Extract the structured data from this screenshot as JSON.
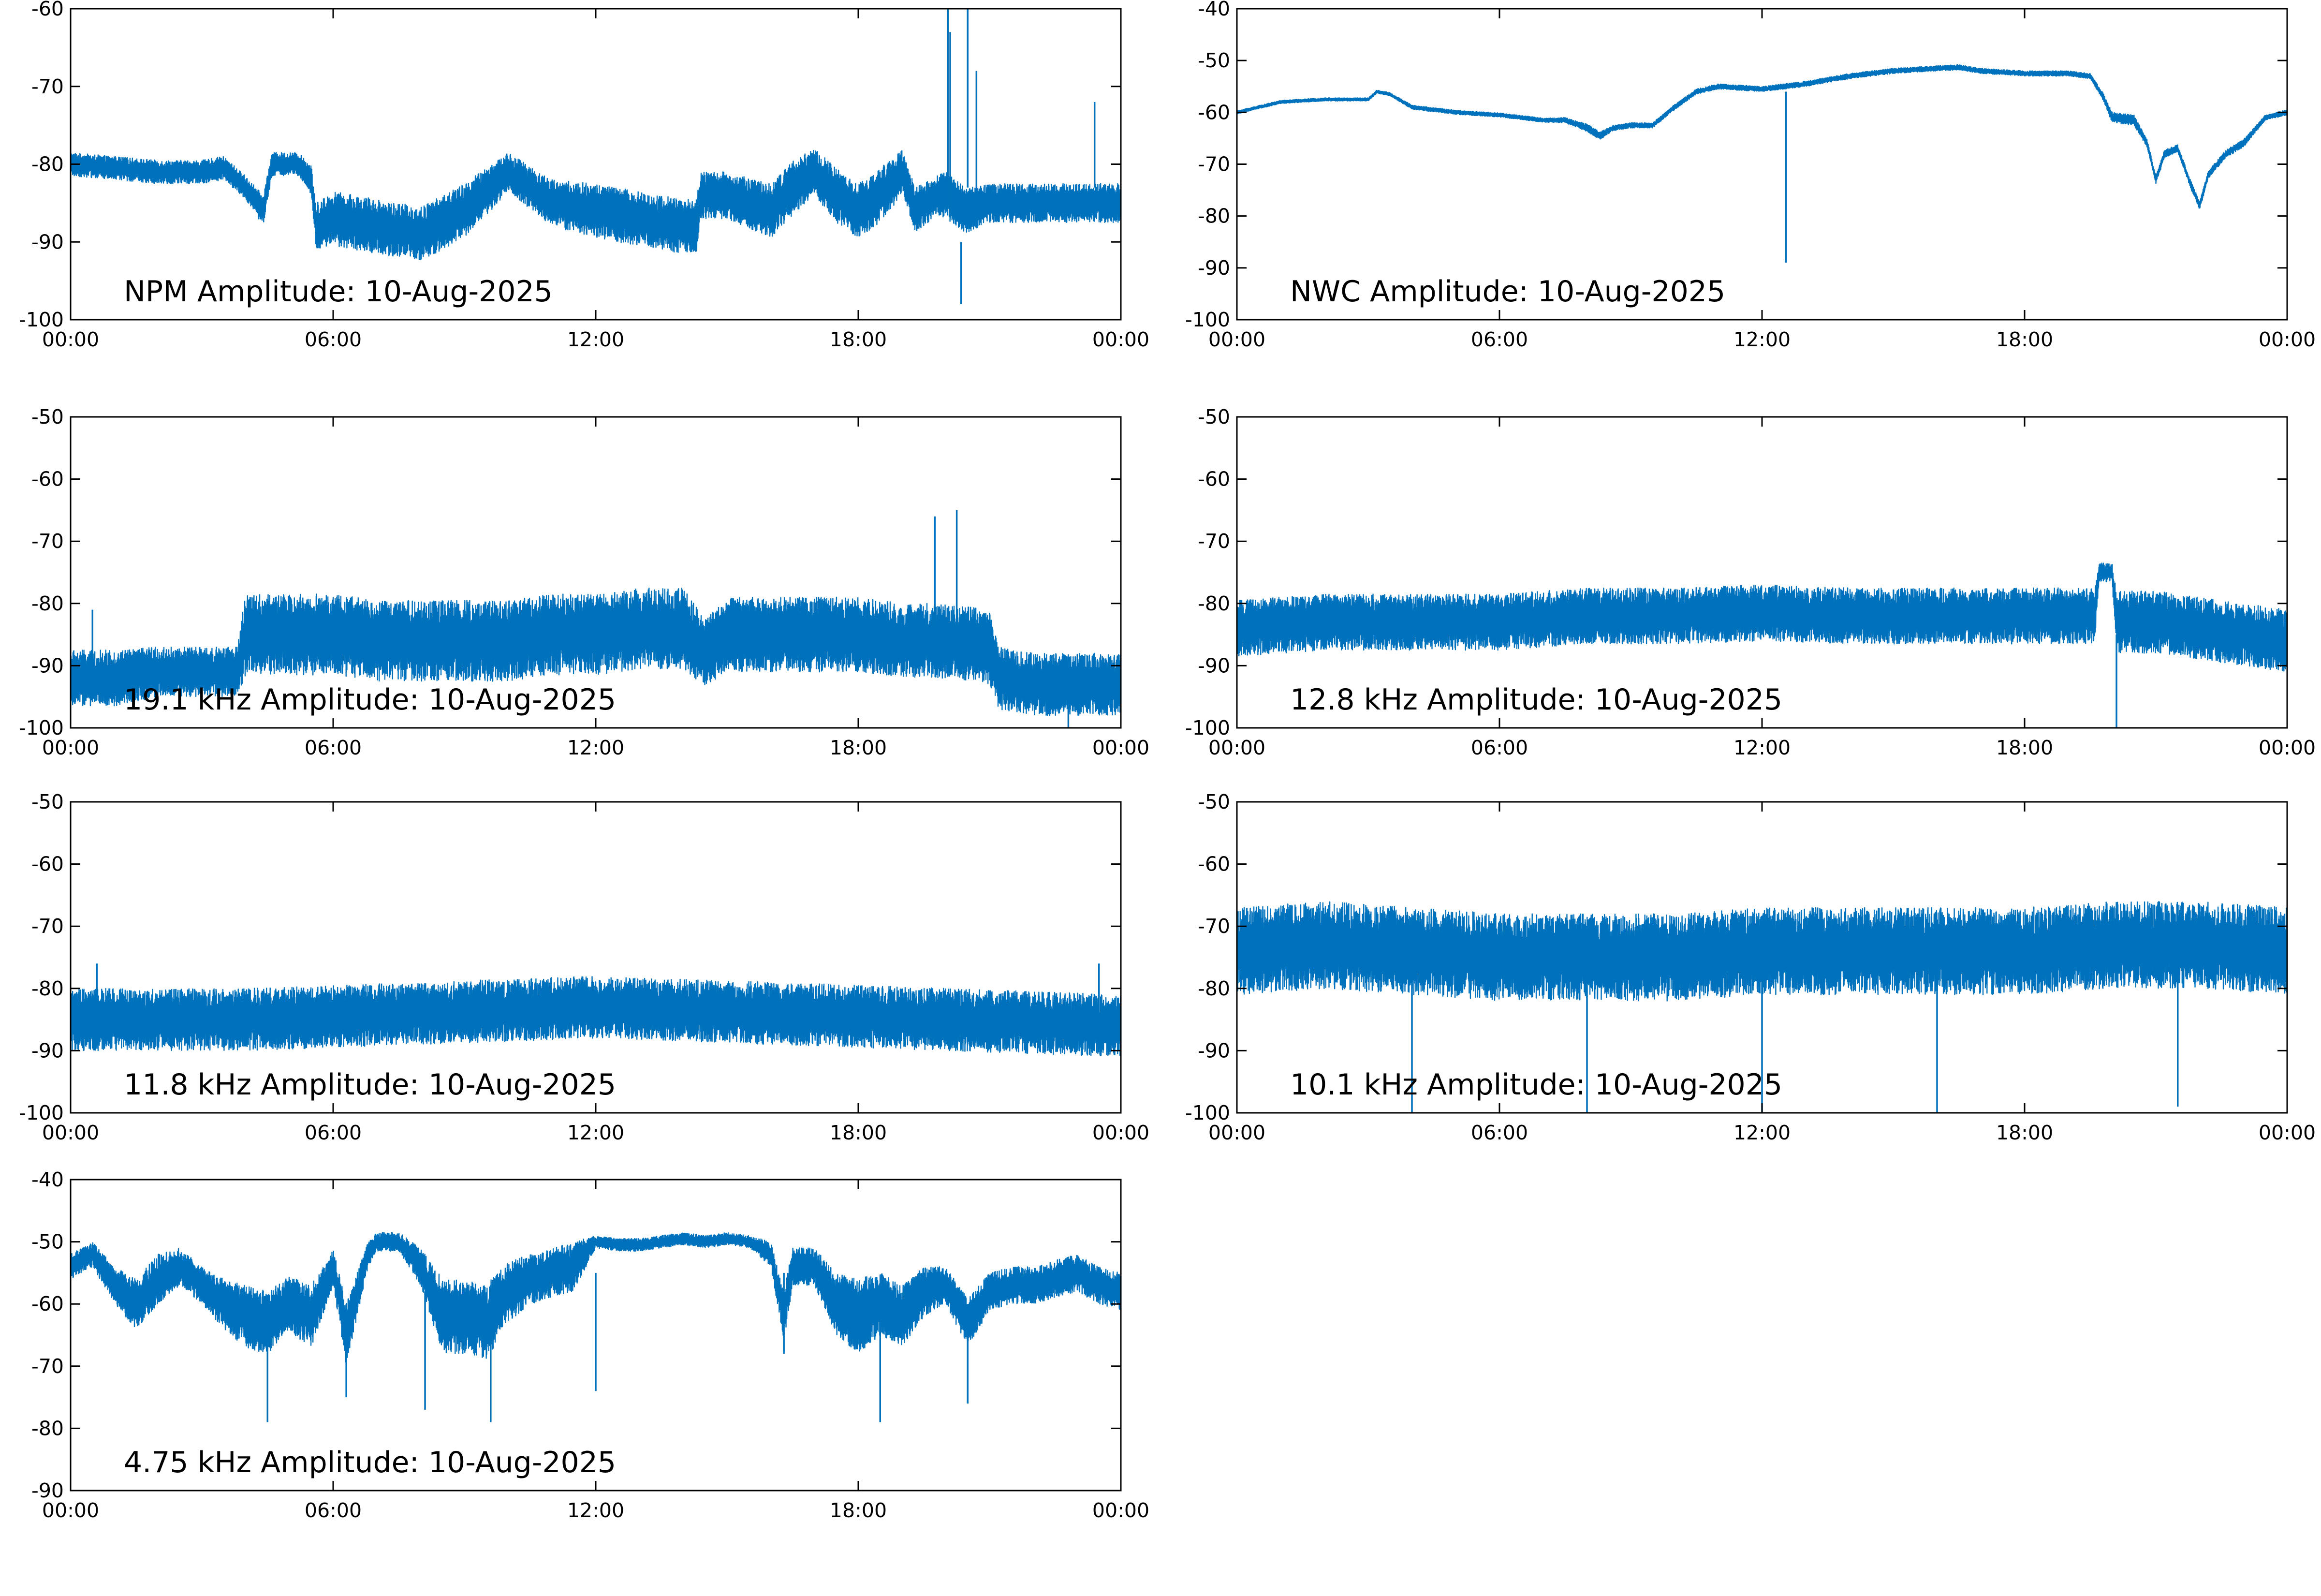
{
  "colors": {
    "trace": "#0072BD",
    "axes": "#000000",
    "background": "#ffffff"
  },
  "chart_data": [
    {
      "type": "line",
      "title": "NPM Amplitude: 10-Aug-2025",
      "xlabel": "",
      "ylabel": "",
      "xlim": [
        0,
        24
      ],
      "ylim": [
        -100,
        -60
      ],
      "xticks": [
        0,
        6,
        12,
        18,
        24
      ],
      "xticklabels": [
        "00:00",
        "06:00",
        "12:00",
        "18:00",
        "00:00"
      ],
      "yticks": [
        -60,
        -70,
        -80,
        -90,
        -100
      ],
      "yticklabels": [
        "-60",
        "-70",
        "-80",
        "-90",
        "-100"
      ],
      "grid": false,
      "series": [
        {
          "x": [
            0,
            1,
            2,
            3,
            3.5,
            4,
            4.4,
            4.6,
            5.2,
            5.5,
            5.6,
            6,
            7,
            8,
            9,
            9.6,
            10,
            11,
            12,
            13,
            14,
            14.3,
            14.4,
            15,
            16,
            16.5,
            17,
            17.5,
            18,
            18.5,
            19,
            19.3,
            19.8,
            20,
            20.5,
            21,
            22,
            23,
            24
          ],
          "y": [
            -80,
            -80.5,
            -81,
            -81,
            -80.5,
            -83,
            -86,
            -80,
            -80,
            -82,
            -88,
            -87,
            -88,
            -89,
            -86,
            -83,
            -81,
            -85,
            -86,
            -87,
            -88,
            -88,
            -84,
            -84,
            -86,
            -83,
            -81,
            -84,
            -86,
            -84,
            -81,
            -86,
            -84,
            -84,
            -86,
            -85,
            -85,
            -85,
            -85
          ],
          "band": [
            3,
            3,
            3,
            3,
            3,
            3,
            4,
            3,
            3,
            4,
            6,
            7,
            7,
            7,
            7,
            6,
            5,
            6,
            7,
            7,
            7,
            7,
            6,
            6,
            7,
            7,
            6,
            7,
            7,
            7,
            6,
            6,
            5,
            6,
            6,
            5,
            5,
            5,
            5
          ]
        }
      ],
      "spikes": [
        {
          "x": 20.05,
          "y": [
            -85,
            -60
          ]
        },
        {
          "x": 20.1,
          "y": [
            -86,
            -63
          ]
        },
        {
          "x": 20.35,
          "y": [
            -90,
            -98
          ]
        },
        {
          "x": 20.5,
          "y": [
            -83,
            -60
          ]
        },
        {
          "x": 20.7,
          "y": [
            -84,
            -68
          ]
        },
        {
          "x": 23.4,
          "y": [
            -83,
            -72
          ]
        }
      ]
    },
    {
      "type": "line",
      "title": "NWC Amplitude: 10-Aug-2025",
      "xlabel": "",
      "ylabel": "",
      "xlim": [
        0,
        24
      ],
      "ylim": [
        -100,
        -40
      ],
      "xticks": [
        0,
        6,
        12,
        18,
        24
      ],
      "xticklabels": [
        "00:00",
        "06:00",
        "12:00",
        "18:00",
        "00:00"
      ],
      "yticks": [
        -40,
        -50,
        -60,
        -70,
        -80,
        -90,
        -100
      ],
      "yticklabels": [
        "-40",
        "-50",
        "-60",
        "-70",
        "-80",
        "-90",
        "-100"
      ],
      "grid": false,
      "series": [
        {
          "x": [
            0,
            0.5,
            1,
            2,
            3,
            3.2,
            3.5,
            4,
            5,
            6,
            6.5,
            7,
            7.5,
            8,
            8.3,
            8.6,
            9,
            9.5,
            10,
            10.5,
            11,
            12,
            12.5,
            13,
            14,
            15,
            16,
            16.5,
            17,
            18,
            19,
            19.5,
            19.8,
            20,
            20.5,
            20.8,
            21,
            21.2,
            21.5,
            21.8,
            22,
            22.2,
            22.6,
            23,
            23.5,
            24
          ],
          "y": [
            -60,
            -59,
            -58,
            -57.5,
            -57.5,
            -56,
            -56.5,
            -59,
            -60,
            -60.5,
            -61,
            -61.5,
            -61.5,
            -63,
            -64.5,
            -63,
            -62.5,
            -62.5,
            -59,
            -56,
            -55,
            -55.5,
            -55,
            -54.5,
            -53,
            -52,
            -51.5,
            -51.3,
            -52,
            -52.5,
            -52.5,
            -53,
            -57,
            -61,
            -61.5,
            -66,
            -73,
            -68,
            -67,
            -74,
            -78,
            -72,
            -68,
            -66,
            -61,
            -60
          ],
          "band": [
            0.6,
            0.6,
            0.6,
            0.6,
            0.6,
            0.6,
            0.6,
            0.8,
            0.8,
            0.8,
            0.8,
            0.8,
            1,
            1.5,
            1.5,
            1,
            1,
            1,
            1,
            1,
            1,
            1,
            1,
            1,
            1,
            1,
            1,
            1,
            1,
            1,
            1,
            1,
            1.5,
            2,
            2,
            1.5,
            1.5,
            1.5,
            1.5,
            1.5,
            1.5,
            1.5,
            1.5,
            1.5,
            1,
            1
          ]
        }
      ],
      "spikes": [
        {
          "x": 12.55,
          "y": [
            -56,
            -89
          ]
        }
      ]
    },
    {
      "type": "line",
      "title": "19.1 kHz Amplitude: 10-Aug-2025",
      "xlabel": "",
      "ylabel": "",
      "xlim": [
        0,
        24
      ],
      "ylim": [
        -100,
        -50
      ],
      "xticks": [
        0,
        6,
        12,
        18,
        24
      ],
      "xticklabels": [
        "00:00",
        "06:00",
        "12:00",
        "18:00",
        "00:00"
      ],
      "yticks": [
        -50,
        -60,
        -70,
        -80,
        -90,
        -100
      ],
      "yticklabels": [
        "-50",
        "-60",
        "-70",
        "-80",
        "-90",
        "-100"
      ],
      "grid": false,
      "series": [
        {
          "x": [
            0,
            1,
            2,
            3,
            3.8,
            4,
            5,
            6,
            7,
            8,
            9,
            10,
            11,
            12,
            13,
            14,
            14.5,
            15,
            16,
            17,
            18,
            19,
            20,
            21,
            21.2,
            22,
            23,
            24
          ],
          "y": [
            -92,
            -92,
            -91,
            -91,
            -91,
            -85,
            -85,
            -85,
            -86,
            -86,
            -86,
            -86,
            -85,
            -85,
            -84,
            -84,
            -88,
            -85,
            -85,
            -85,
            -85,
            -86,
            -86,
            -87,
            -92,
            -93,
            -93,
            -93
          ],
          "band": [
            9,
            9,
            8,
            8,
            8,
            13,
            13,
            13,
            13,
            13,
            13,
            13,
            13,
            13,
            13,
            13,
            11,
            12,
            12,
            12,
            12,
            12,
            12,
            12,
            10,
            10,
            10,
            10
          ]
        }
      ],
      "spikes": [
        {
          "x": 19.75,
          "y": [
            -84,
            -66
          ]
        },
        {
          "x": 20.25,
          "y": [
            -84,
            -65
          ]
        },
        {
          "x": 0.5,
          "y": [
            -93,
            -81
          ]
        },
        {
          "x": 22.8,
          "y": [
            -93,
            -100
          ]
        }
      ]
    },
    {
      "type": "line",
      "title": "12.8 kHz Amplitude: 10-Aug-2025",
      "xlabel": "",
      "ylabel": "",
      "xlim": [
        0,
        24
      ],
      "ylim": [
        -100,
        -50
      ],
      "xticks": [
        0,
        6,
        12,
        18,
        24
      ],
      "xticklabels": [
        "00:00",
        "06:00",
        "12:00",
        "18:00",
        "00:00"
      ],
      "yticks": [
        -50,
        -60,
        -70,
        -80,
        -90,
        -100
      ],
      "yticklabels": [
        "-50",
        "-60",
        "-70",
        "-80",
        "-90",
        "-100"
      ],
      "grid": false,
      "series": [
        {
          "x": [
            0,
            2,
            4,
            6,
            8,
            10,
            12,
            14,
            16,
            18,
            19.6,
            19.7,
            20,
            20.1,
            21,
            22,
            23,
            24
          ],
          "y": [
            -84,
            -83,
            -83,
            -83,
            -82,
            -82,
            -81.5,
            -82,
            -82,
            -82,
            -82,
            -75,
            -75,
            -83,
            -83,
            -84,
            -85,
            -86
          ],
          "band": [
            9,
            9,
            9,
            9,
            9,
            9,
            9,
            9,
            9,
            9,
            9,
            3,
            3,
            10,
            10,
            10,
            10,
            10
          ]
        }
      ],
      "spikes": [
        {
          "x": 20.1,
          "y": [
            -85,
            -100
          ]
        }
      ]
    },
    {
      "type": "line",
      "title": "11.8 kHz Amplitude: 10-Aug-2025",
      "xlabel": "",
      "ylabel": "",
      "xlim": [
        0,
        24
      ],
      "ylim": [
        -100,
        -50
      ],
      "xticks": [
        0,
        6,
        12,
        18,
        24
      ],
      "xticklabels": [
        "00:00",
        "06:00",
        "12:00",
        "18:00",
        "00:00"
      ],
      "yticks": [
        -50,
        -60,
        -70,
        -80,
        -90,
        -100
      ],
      "yticklabels": [
        "-50",
        "-60",
        "-70",
        "-80",
        "-90",
        "-100"
      ],
      "grid": false,
      "series": [
        {
          "x": [
            0,
            2,
            4,
            6,
            8,
            10,
            12,
            14,
            16,
            18,
            20,
            22,
            24
          ],
          "y": [
            -85,
            -85,
            -85,
            -84.5,
            -84,
            -83.5,
            -83,
            -83.5,
            -84,
            -84.5,
            -85,
            -85.5,
            -86
          ],
          "band": [
            10,
            10,
            10,
            10,
            10,
            10,
            10,
            10,
            10,
            10,
            10,
            10,
            10
          ]
        }
      ],
      "spikes": [
        {
          "x": 0.6,
          "y": [
            -83,
            -76
          ]
        },
        {
          "x": 23.5,
          "y": [
            -85,
            -76
          ]
        }
      ]
    },
    {
      "type": "line",
      "title": "10.1 kHz Amplitude: 10-Aug-2025",
      "xlabel": "",
      "ylabel": "",
      "xlim": [
        0,
        24
      ],
      "ylim": [
        -100,
        -50
      ],
      "xticks": [
        0,
        6,
        12,
        18,
        24
      ],
      "xticklabels": [
        "00:00",
        "06:00",
        "12:00",
        "18:00",
        "00:00"
      ],
      "yticks": [
        -50,
        -60,
        -70,
        -80,
        -90,
        -100
      ],
      "yticklabels": [
        "-50",
        "-60",
        "-70",
        "-80",
        "-90",
        "-100"
      ],
      "grid": false,
      "series": [
        {
          "x": [
            0,
            2,
            4,
            6,
            8,
            10,
            12,
            14,
            16,
            18,
            20,
            22,
            24
          ],
          "y": [
            -74,
            -73,
            -74,
            -75,
            -75,
            -75,
            -74,
            -74,
            -74,
            -74,
            -73,
            -73,
            -74
          ],
          "band": [
            14,
            14,
            14,
            14,
            14,
            14,
            14,
            14,
            14,
            14,
            14,
            14,
            14
          ]
        }
      ],
      "spikes": [
        {
          "x": 4,
          "y": [
            -75,
            -100
          ]
        },
        {
          "x": 8,
          "y": [
            -75,
            -100
          ]
        },
        {
          "x": 12,
          "y": [
            -74,
            -100
          ]
        },
        {
          "x": 16,
          "y": [
            -74,
            -100
          ]
        },
        {
          "x": 21.5,
          "y": [
            -73,
            -99
          ]
        }
      ]
    },
    {
      "type": "line",
      "title": "4.75 kHz Amplitude: 10-Aug-2025",
      "xlabel": "",
      "ylabel": "",
      "xlim": [
        0,
        24
      ],
      "ylim": [
        -90,
        -40
      ],
      "xticks": [
        0,
        6,
        12,
        18,
        24
      ],
      "xticklabels": [
        "00:00",
        "06:00",
        "12:00",
        "18:00",
        "00:00"
      ],
      "yticks": [
        -40,
        -50,
        -60,
        -70,
        -80,
        -90
      ],
      "yticklabels": [
        "-40",
        "-50",
        "-60",
        "-70",
        "-80",
        "-90"
      ],
      "grid": false,
      "series": [
        {
          "x": [
            0,
            0.5,
            1,
            1.5,
            2,
            2.5,
            3,
            3.5,
            4,
            4.5,
            5,
            5.5,
            6,
            6.3,
            6.8,
            7,
            7.5,
            8,
            8.5,
            9,
            9.5,
            10,
            10.5,
            11,
            11.5,
            12,
            12.5,
            13,
            13.5,
            14,
            14.5,
            15,
            15.5,
            16,
            16.3,
            16.5,
            17,
            17.5,
            18,
            18.5,
            19,
            19.5,
            20,
            20.5,
            21,
            21.5,
            22,
            22.5,
            23,
            23.5,
            24
          ],
          "y": [
            -54,
            -52,
            -57,
            -60,
            -56,
            -54,
            -57,
            -60,
            -62,
            -63,
            -60,
            -62,
            -54,
            -65,
            -52,
            -50,
            -50,
            -54,
            -62,
            -62,
            -63,
            -58,
            -56,
            -55,
            -54,
            -50,
            -50.5,
            -50.5,
            -50,
            -49.5,
            -50,
            -49.5,
            -50,
            -52,
            -62,
            -54,
            -54,
            -60,
            -62,
            -60,
            -62,
            -58,
            -57,
            -63,
            -58,
            -57,
            -57,
            -56,
            -55,
            -57,
            -58
          ],
          "band": [
            4,
            4,
            6,
            8,
            8,
            6,
            6,
            8,
            10,
            10,
            9,
            10,
            6,
            10,
            4,
            3,
            3,
            6,
            12,
            12,
            12,
            10,
            8,
            8,
            8,
            2,
            2,
            2,
            2,
            2,
            2,
            2,
            2,
            4,
            8,
            6,
            6,
            10,
            12,
            10,
            10,
            8,
            6,
            8,
            6,
            6,
            6,
            6,
            6,
            6,
            6
          ]
        }
      ],
      "spikes": [
        {
          "x": 4.5,
          "y": [
            -64,
            -79
          ]
        },
        {
          "x": 6.3,
          "y": [
            -60,
            -75
          ]
        },
        {
          "x": 8.1,
          "y": [
            -58,
            -77
          ]
        },
        {
          "x": 9.6,
          "y": [
            -62,
            -79
          ]
        },
        {
          "x": 12,
          "y": [
            -55,
            -74
          ]
        },
        {
          "x": 16.3,
          "y": [
            -55,
            -68
          ]
        },
        {
          "x": 18.5,
          "y": [
            -60,
            -79
          ]
        },
        {
          "x": 20.5,
          "y": [
            -60,
            -76
          ]
        }
      ]
    }
  ]
}
